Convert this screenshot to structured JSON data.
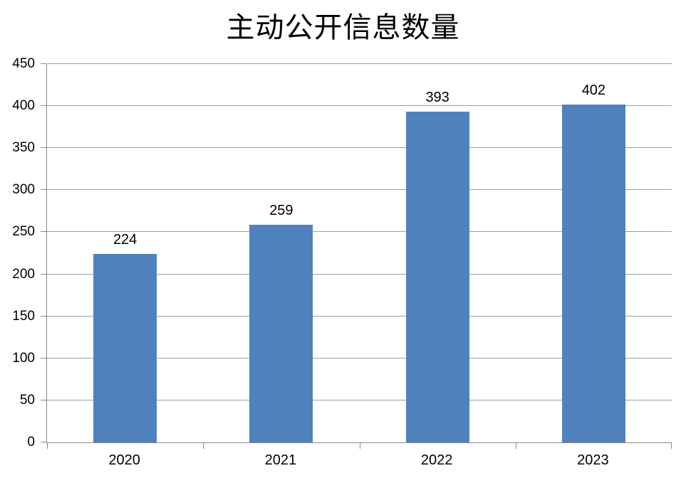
{
  "title": "主动公开信息数量",
  "chart_data": {
    "type": "bar",
    "title": "主动公开信息数量",
    "categories": [
      "2020",
      "2021",
      "2022",
      "2023"
    ],
    "values": [
      224,
      259,
      393,
      402
    ],
    "data_labels": [
      "224",
      "259",
      "393",
      "402"
    ],
    "xlabel": "",
    "ylabel": "",
    "ylim": [
      0,
      450
    ],
    "ytick_step": 50,
    "yticks": [
      0,
      50,
      100,
      150,
      200,
      250,
      300,
      350,
      400,
      450
    ],
    "grid": true,
    "legend_position": "none",
    "colors": {
      "bar": "#4F81BD",
      "gridline": "#9D9D9D",
      "axis": "#8A8A8A",
      "text": "#000000",
      "background": "#FFFFFF"
    }
  }
}
